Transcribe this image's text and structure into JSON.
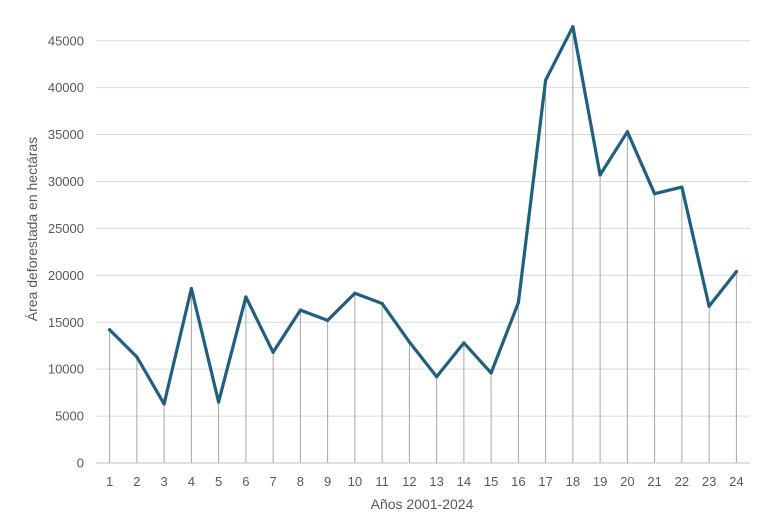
{
  "chart_data": {
    "type": "line",
    "title": "",
    "xlabel": "Años 2001-2024",
    "ylabel": "Área deforestada en hectáras",
    "x": [
      1,
      2,
      3,
      4,
      5,
      6,
      7,
      8,
      9,
      10,
      11,
      12,
      13,
      14,
      15,
      16,
      17,
      18,
      19,
      20,
      21,
      22,
      23,
      24
    ],
    "x_tick_labels": [
      "1",
      "2",
      "3",
      "4",
      "5",
      "6",
      "7",
      "8",
      "9",
      "10",
      "11",
      "12",
      "13",
      "14",
      "15",
      "16",
      "17",
      "18",
      "19",
      "20",
      "21",
      "22",
      "23",
      "24"
    ],
    "series": [
      {
        "values": [
          14200,
          11300,
          6300,
          18600,
          6500,
          17700,
          11800,
          16300,
          15200,
          18100,
          17000,
          12900,
          9200,
          12800,
          9600,
          17100,
          40800,
          46500,
          30700,
          35300,
          28700,
          29400,
          16700,
          20400
        ],
        "color": "#1f5f7f"
      }
    ],
    "y_ticks": [
      0,
      5000,
      10000,
      15000,
      20000,
      25000,
      30000,
      35000,
      40000,
      45000
    ],
    "y_tick_labels": [
      "0",
      "5000",
      "10000",
      "15000",
      "20000",
      "25000",
      "30000",
      "35000",
      "40000",
      "45000"
    ],
    "ylim": [
      0,
      47000
    ],
    "grid": true,
    "drop_lines": true,
    "colors": {
      "line": "#1f5f7f",
      "grid": "#d9d9d9",
      "drop_line": "#a6a6a6",
      "axis": "#bfbfbf",
      "text": "#595959"
    }
  }
}
